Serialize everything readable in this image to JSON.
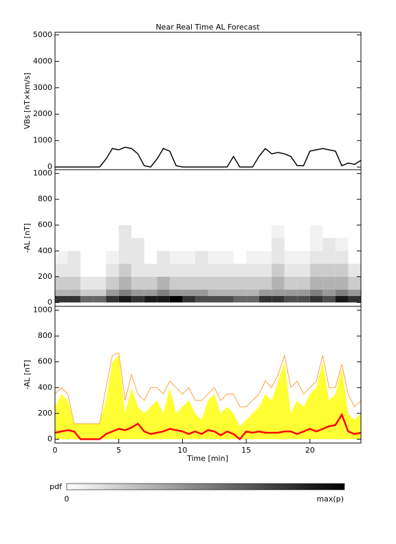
{
  "chart_data": [
    {
      "type": "line",
      "title": "Near Real Time AL Forecast",
      "ylabel": "VBs [nT×km/s]",
      "x": [
        0,
        0.5,
        1,
        1.5,
        2,
        2.5,
        3,
        3.5,
        4,
        4.5,
        5,
        5.5,
        6,
        6.5,
        7,
        7.5,
        8,
        8.5,
        9,
        9.5,
        10,
        10.5,
        11,
        11.5,
        12,
        12.5,
        13,
        13.5,
        14,
        14.5,
        15,
        15.5,
        16,
        16.5,
        17,
        17.5,
        18,
        18.5,
        19,
        19.5,
        20,
        20.5,
        21,
        21.5,
        22,
        22.5,
        23,
        23.5,
        24
      ],
      "series": [
        {
          "color": "#000000",
          "values": [
            0,
            0,
            0,
            0,
            0,
            0,
            0,
            0,
            300,
            700,
            650,
            750,
            700,
            500,
            50,
            0,
            300,
            700,
            600,
            50,
            0,
            0,
            0,
            0,
            0,
            0,
            0,
            0,
            400,
            0,
            0,
            0,
            400,
            700,
            500,
            550,
            500,
            400,
            50,
            50,
            600,
            650,
            700,
            650,
            600,
            50,
            150,
            100,
            250
          ]
        }
      ],
      "xlim": [
        0,
        24
      ],
      "ylim": [
        -100,
        5100
      ],
      "yticks": [
        0,
        1000,
        2000,
        3000,
        4000,
        5000
      ]
    },
    {
      "type": "heatmap",
      "ylabel": "-AL [nT]",
      "xbins": [
        0,
        1,
        2,
        3,
        4,
        5,
        6,
        7,
        8,
        9,
        10,
        11,
        12,
        13,
        14,
        15,
        16,
        17,
        18,
        19,
        20,
        21,
        22,
        23,
        24
      ],
      "ybins": [
        0,
        50,
        100,
        200,
        300,
        400,
        500,
        600,
        700
      ],
      "pdf": [
        [
          0.8,
          0.3,
          0.2,
          0.1,
          0.05,
          0,
          0,
          0
        ],
        [
          0.8,
          0.3,
          0.2,
          0.1,
          0.1,
          0,
          0,
          0
        ],
        [
          0.6,
          0.2,
          0.1,
          0,
          0,
          0,
          0,
          0
        ],
        [
          0.6,
          0.2,
          0.1,
          0,
          0,
          0,
          0,
          0
        ],
        [
          0.8,
          0.4,
          0.2,
          0.1,
          0.05,
          0,
          0,
          0
        ],
        [
          0.9,
          0.5,
          0.3,
          0.2,
          0.1,
          0.1,
          0.1,
          0
        ],
        [
          0.8,
          0.4,
          0.2,
          0.1,
          0.1,
          0.1,
          0,
          0
        ],
        [
          0.9,
          0.4,
          0.2,
          0.1,
          0,
          0,
          0,
          0
        ],
        [
          0.9,
          0.5,
          0.3,
          0.1,
          0.1,
          0,
          0,
          0
        ],
        [
          1,
          0.4,
          0.2,
          0.1,
          0.05,
          0,
          0,
          0
        ],
        [
          0.8,
          0.4,
          0.2,
          0.1,
          0.05,
          0,
          0,
          0
        ],
        [
          0.7,
          0.4,
          0.2,
          0.1,
          0.1,
          0,
          0,
          0
        ],
        [
          0.7,
          0.3,
          0.2,
          0.1,
          0.05,
          0,
          0,
          0
        ],
        [
          0.7,
          0.3,
          0.2,
          0.1,
          0.05,
          0,
          0,
          0
        ],
        [
          0.6,
          0.3,
          0.2,
          0.1,
          0,
          0,
          0,
          0
        ],
        [
          0.6,
          0.3,
          0.2,
          0.1,
          0.05,
          0,
          0,
          0
        ],
        [
          0.8,
          0.4,
          0.2,
          0.1,
          0.05,
          0,
          0,
          0
        ],
        [
          0.8,
          0.4,
          0.3,
          0.2,
          0.1,
          0.1,
          0.05,
          0
        ],
        [
          0.7,
          0.4,
          0.2,
          0.1,
          0.05,
          0,
          0,
          0
        ],
        [
          0.7,
          0.4,
          0.2,
          0.1,
          0.05,
          0,
          0,
          0
        ],
        [
          0.8,
          0.5,
          0.3,
          0.2,
          0.1,
          0.05,
          0.05,
          0
        ],
        [
          0.7,
          0.4,
          0.3,
          0.2,
          0.1,
          0.1,
          0,
          0
        ],
        [
          0.9,
          0.5,
          0.3,
          0.2,
          0.1,
          0.05,
          0,
          0
        ],
        [
          0.8,
          0.4,
          0.2,
          0.1,
          0,
          0,
          0,
          0
        ]
      ],
      "xlim": [
        0,
        24
      ],
      "ylim": [
        -30,
        1030
      ],
      "yticks": [
        0,
        200,
        400,
        600,
        800,
        1000
      ]
    },
    {
      "type": "band",
      "ylabel": "-AL [nT]",
      "xlabel": "Time [min]",
      "x": [
        0,
        0.5,
        1,
        1.5,
        2,
        2.5,
        3,
        3.5,
        4,
        4.5,
        5,
        5.5,
        6,
        6.5,
        7,
        7.5,
        8,
        8.5,
        9,
        9.5,
        10,
        10.5,
        11,
        11.5,
        12,
        12.5,
        13,
        13.5,
        14,
        14.5,
        15,
        15.5,
        16,
        16.5,
        17,
        17.5,
        18,
        18.5,
        19,
        19.5,
        20,
        20.5,
        21,
        21.5,
        22,
        22.5,
        23,
        23.5,
        24
      ],
      "series": [
        {
          "color": "#ffff00",
          "fill": true,
          "values": [
            250,
            350,
            300,
            120,
            120,
            120,
            120,
            120,
            300,
            600,
            650,
            200,
            400,
            250,
            200,
            250,
            300,
            200,
            400,
            200,
            250,
            300,
            200,
            150,
            300,
            350,
            200,
            250,
            200,
            100,
            150,
            200,
            250,
            350,
            300,
            450,
            600,
            200,
            300,
            250,
            350,
            400,
            600,
            300,
            350,
            550,
            200,
            150,
            200
          ]
        },
        {
          "color": "#ffa040",
          "values": [
            350,
            400,
            350,
            120,
            120,
            120,
            120,
            120,
            400,
            650,
            670,
            300,
            500,
            350,
            300,
            400,
            400,
            350,
            450,
            400,
            350,
            400,
            300,
            300,
            350,
            400,
            300,
            350,
            350,
            250,
            250,
            300,
            350,
            450,
            400,
            500,
            650,
            400,
            450,
            350,
            400,
            450,
            650,
            400,
            400,
            580,
            350,
            250,
            300
          ]
        },
        {
          "color": "#ff0000",
          "values": [
            50,
            60,
            70,
            60,
            0,
            0,
            0,
            0,
            40,
            60,
            80,
            70,
            90,
            120,
            60,
            40,
            50,
            60,
            80,
            70,
            60,
            40,
            60,
            40,
            70,
            60,
            30,
            60,
            40,
            0,
            60,
            50,
            60,
            50,
            50,
            50,
            60,
            60,
            40,
            60,
            80,
            60,
            80,
            100,
            110,
            190,
            60,
            40,
            50
          ]
        }
      ],
      "xlim": [
        0,
        24
      ],
      "ylim": [
        -30,
        1030
      ],
      "yticks": [
        0,
        200,
        400,
        600,
        800,
        1000
      ],
      "xticks": [
        0,
        5,
        10,
        15,
        20
      ]
    }
  ],
  "colorbar": {
    "label": "pdf",
    "min_label": "0",
    "max_label": "max(p)"
  }
}
